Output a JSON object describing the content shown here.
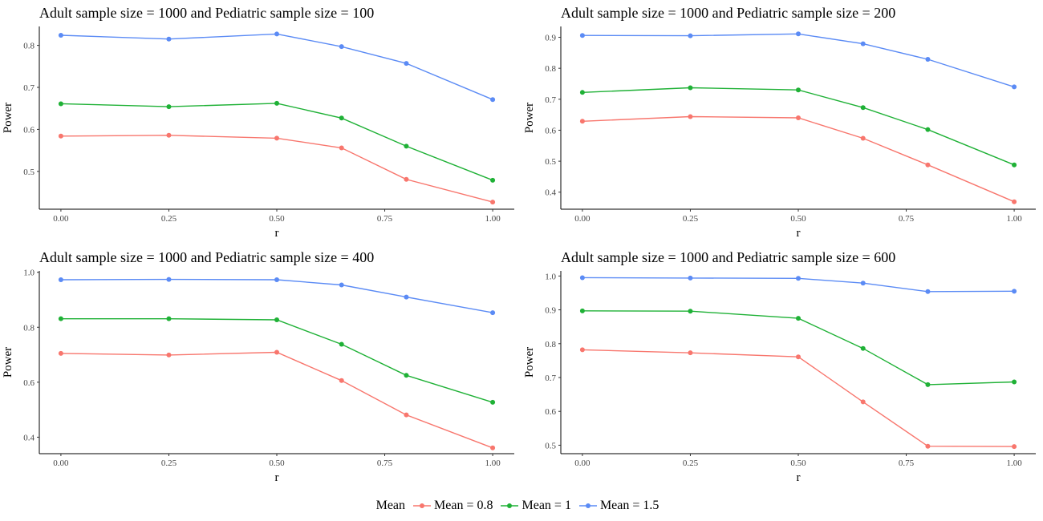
{
  "legend": {
    "title": "Mean",
    "items": [
      {
        "label": "Mean = 0.8",
        "color": "#F8766D"
      },
      {
        "label": "Mean = 1",
        "color": "#1FB136"
      },
      {
        "label": "Mean = 1.5",
        "color": "#5B8BF5"
      }
    ]
  },
  "chart_data": [
    {
      "type": "line",
      "title": "Adult sample size = 1000 and Pediatric sample size = 100",
      "xlabel": "r",
      "ylabel": "Power",
      "x": [
        0,
        0.25,
        0.5,
        0.65,
        0.8,
        1.0
      ],
      "xticks": [
        0,
        0.25,
        0.5,
        0.75,
        1.0
      ],
      "xtick_labels": [
        "0.00",
        "0.25",
        "0.50",
        "0.75",
        "1.00"
      ],
      "xlim": [
        -0.05,
        1.05
      ],
      "yticks": [
        0.5,
        0.6,
        0.7,
        0.8
      ],
      "ytick_labels": [
        "0.5",
        "0.6",
        "0.7",
        "0.8"
      ],
      "ylim": [
        0.41,
        0.845
      ],
      "grid": false,
      "series": [
        {
          "name": "Mean = 0.8",
          "color": "#F8766D",
          "values": [
            0.584,
            0.586,
            0.579,
            0.556,
            0.481,
            0.427
          ]
        },
        {
          "name": "Mean = 1",
          "color": "#1FB136",
          "values": [
            0.661,
            0.654,
            0.662,
            0.627,
            0.56,
            0.479
          ]
        },
        {
          "name": "Mean = 1.5",
          "color": "#5B8BF5",
          "values": [
            0.824,
            0.815,
            0.827,
            0.797,
            0.757,
            0.671
          ]
        }
      ]
    },
    {
      "type": "line",
      "title": "Adult sample size = 1000 and Pediatric sample size = 200",
      "xlabel": "r",
      "ylabel": "Power",
      "x": [
        0,
        0.25,
        0.5,
        0.65,
        0.8,
        1.0
      ],
      "xticks": [
        0,
        0.25,
        0.5,
        0.75,
        1.0
      ],
      "xtick_labels": [
        "0.00",
        "0.25",
        "0.50",
        "0.75",
        "1.00"
      ],
      "xlim": [
        -0.05,
        1.05
      ],
      "yticks": [
        0.4,
        0.5,
        0.6,
        0.7,
        0.8,
        0.9
      ],
      "ytick_labels": [
        "0.4",
        "0.5",
        "0.6",
        "0.7",
        "0.8",
        "0.9"
      ],
      "ylim": [
        0.345,
        0.935
      ],
      "grid": false,
      "series": [
        {
          "name": "Mean = 0.8",
          "color": "#F8766D",
          "values": [
            0.629,
            0.644,
            0.64,
            0.574,
            0.488,
            0.369
          ]
        },
        {
          "name": "Mean = 1",
          "color": "#1FB136",
          "values": [
            0.722,
            0.737,
            0.73,
            0.673,
            0.602,
            0.488
          ]
        },
        {
          "name": "Mean = 1.5",
          "color": "#5B8BF5",
          "values": [
            0.906,
            0.905,
            0.911,
            0.879,
            0.829,
            0.74
          ]
        }
      ]
    },
    {
      "type": "line",
      "title": "Adult sample size = 1000 and Pediatric sample size = 400",
      "xlabel": "r",
      "ylabel": "Power",
      "x": [
        0,
        0.25,
        0.5,
        0.65,
        0.8,
        1.0
      ],
      "xticks": [
        0,
        0.25,
        0.5,
        0.75,
        1.0
      ],
      "xtick_labels": [
        "0.00",
        "0.25",
        "0.50",
        "0.75",
        "1.00"
      ],
      "xlim": [
        -0.05,
        1.05
      ],
      "yticks": [
        0.4,
        0.6,
        0.8,
        1.0
      ],
      "ytick_labels": [
        "0.4",
        "0.6",
        "0.8",
        "1.0"
      ],
      "ylim": [
        0.34,
        1.005
      ],
      "grid": false,
      "series": [
        {
          "name": "Mean = 0.8",
          "color": "#F8766D",
          "values": [
            0.705,
            0.699,
            0.709,
            0.606,
            0.481,
            0.361
          ]
        },
        {
          "name": "Mean = 1",
          "color": "#1FB136",
          "values": [
            0.831,
            0.831,
            0.827,
            0.738,
            0.625,
            0.527
          ]
        },
        {
          "name": "Mean = 1.5",
          "color": "#5B8BF5",
          "values": [
            0.973,
            0.974,
            0.973,
            0.954,
            0.91,
            0.853
          ]
        }
      ]
    },
    {
      "type": "line",
      "title": "Adult sample size = 1000 and Pediatric sample size = 600",
      "xlabel": "r",
      "ylabel": "Power",
      "x": [
        0,
        0.25,
        0.5,
        0.65,
        0.8,
        1.0
      ],
      "xticks": [
        0,
        0.25,
        0.5,
        0.75,
        1.0
      ],
      "xtick_labels": [
        "0.00",
        "0.25",
        "0.50",
        "0.75",
        "1.00"
      ],
      "xlim": [
        -0.05,
        1.05
      ],
      "yticks": [
        0.5,
        0.6,
        0.7,
        0.8,
        0.9,
        1.0
      ],
      "ytick_labels": [
        "0.5",
        "0.6",
        "0.7",
        "0.8",
        "0.9",
        "1.0"
      ],
      "ylim": [
        0.475,
        1.015
      ],
      "grid": false,
      "series": [
        {
          "name": "Mean = 0.8",
          "color": "#F8766D",
          "values": [
            0.782,
            0.773,
            0.761,
            0.628,
            0.497,
            0.496
          ]
        },
        {
          "name": "Mean = 1",
          "color": "#1FB136",
          "values": [
            0.897,
            0.896,
            0.875,
            0.786,
            0.679,
            0.687
          ]
        },
        {
          "name": "Mean = 1.5",
          "color": "#5B8BF5",
          "values": [
            0.995,
            0.994,
            0.993,
            0.979,
            0.954,
            0.955
          ]
        }
      ]
    }
  ]
}
